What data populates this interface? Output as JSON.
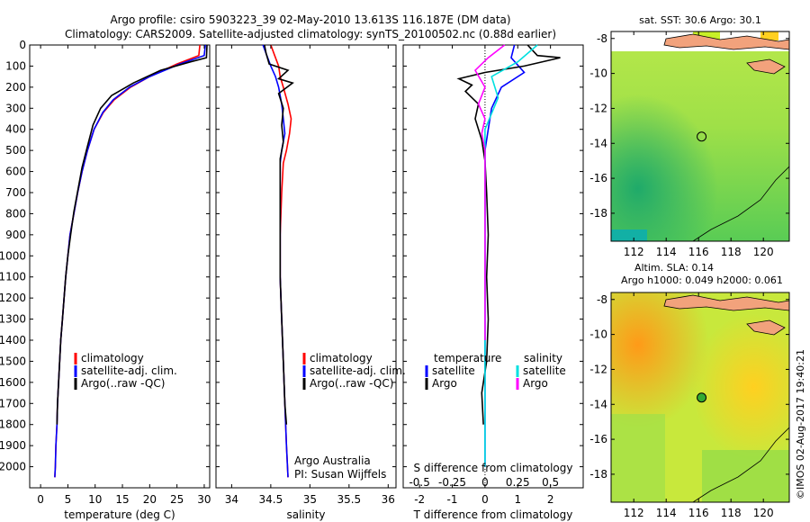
{
  "header": {
    "title_line1": "Argo profile: csiro 5903223_39 02-May-2010 13.613S 116.187E (DM data)",
    "title_line2": "Climatology: CARS2009. Satellite-adjusted climatology: synTS_20100502.nc (0.88d earlier)"
  },
  "colors": {
    "climatology": "#ff0000",
    "satellite": "#0000ff",
    "argo": "#000000",
    "sat_salinity": "#00e0e0",
    "argo_salinity": "#ff00ff"
  },
  "chart_data": [
    {
      "type": "line",
      "id": "temperature",
      "xlabel": "temperature (deg C)",
      "ylabel": "",
      "xlim": [
        -2,
        31
      ],
      "ylim": [
        2100,
        0
      ],
      "xticks": [
        0,
        5,
        10,
        15,
        20,
        25,
        30
      ],
      "yticks": [
        0,
        100,
        200,
        300,
        400,
        500,
        600,
        700,
        800,
        900,
        1000,
        1100,
        1200,
        1300,
        1400,
        1500,
        1600,
        1700,
        1800,
        1900,
        2000
      ],
      "legend": [
        "climatology",
        "satellite-adj. clim.",
        "Argo(..raw -QC)"
      ],
      "series": [
        {
          "name": "climatology",
          "color": "#ff0000",
          "points": [
            [
              29.2,
              0
            ],
            [
              29.0,
              50
            ],
            [
              25.0,
              90
            ],
            [
              20.0,
              150
            ],
            [
              16.5,
              200
            ],
            [
              13.5,
              260
            ],
            [
              11.5,
              320
            ],
            [
              9.8,
              400
            ],
            [
              8.6,
              500
            ],
            [
              7.6,
              600
            ],
            [
              6.8,
              700
            ],
            [
              6.1,
              800
            ],
            [
              5.4,
              900
            ],
            [
              5.0,
              1000
            ],
            [
              4.6,
              1100
            ],
            [
              4.3,
              1200
            ],
            [
              4.0,
              1300
            ],
            [
              3.7,
              1400
            ],
            [
              3.5,
              1500
            ],
            [
              3.3,
              1600
            ],
            [
              3.1,
              1700
            ],
            [
              3.0,
              1800
            ],
            [
              2.8,
              1900
            ],
            [
              2.7,
              2000
            ],
            [
              2.6,
              2050
            ]
          ]
        },
        {
          "name": "satellite-adj. clim.",
          "color": "#0000ff",
          "points": [
            [
              30.2,
              0
            ],
            [
              30.0,
              50
            ],
            [
              25.5,
              90
            ],
            [
              20.0,
              150
            ],
            [
              16.3,
              200
            ],
            [
              13.3,
              260
            ],
            [
              11.4,
              320
            ],
            [
              9.8,
              400
            ],
            [
              8.6,
              500
            ],
            [
              7.6,
              600
            ],
            [
              6.8,
              700
            ],
            [
              6.1,
              800
            ],
            [
              5.4,
              900
            ],
            [
              5.0,
              1000
            ],
            [
              4.6,
              1100
            ],
            [
              4.3,
              1200
            ],
            [
              4.0,
              1300
            ],
            [
              3.7,
              1400
            ],
            [
              3.5,
              1500
            ],
            [
              3.3,
              1600
            ],
            [
              3.1,
              1700
            ],
            [
              3.0,
              1800
            ],
            [
              2.8,
              1900
            ],
            [
              2.7,
              2000
            ],
            [
              2.6,
              2050
            ]
          ]
        },
        {
          "name": "Argo(..raw -QC)",
          "color": "#000000",
          "points": [
            [
              30.5,
              0
            ],
            [
              30.4,
              60
            ],
            [
              27.5,
              80
            ],
            [
              22.0,
              120
            ],
            [
              17.0,
              180
            ],
            [
              13.0,
              240
            ],
            [
              11.0,
              300
            ],
            [
              9.6,
              380
            ],
            [
              8.6,
              480
            ],
            [
              7.6,
              580
            ],
            [
              6.9,
              680
            ],
            [
              6.1,
              790
            ],
            [
              5.5,
              900
            ],
            [
              5.0,
              1000
            ],
            [
              4.6,
              1100
            ],
            [
              4.3,
              1200
            ],
            [
              4.0,
              1300
            ],
            [
              3.7,
              1400
            ],
            [
              3.5,
              1500
            ],
            [
              3.3,
              1600
            ],
            [
              3.1,
              1700
            ],
            [
              3.0,
              1800
            ]
          ]
        }
      ]
    },
    {
      "type": "line",
      "id": "salinity",
      "xlabel": "salinity",
      "xlim": [
        33.8,
        36.1
      ],
      "ylim": [
        2100,
        0
      ],
      "xticks": [
        34,
        34.5,
        35,
        35.5,
        36
      ],
      "legend": [
        "climatology",
        "satellite-adj. clim.",
        "Argo(..raw -QC)"
      ],
      "annotation": [
        "Argo Australia",
        "PI: Susan Wijffels"
      ],
      "series": [
        {
          "name": "climatology",
          "color": "#ff0000",
          "points": [
            [
              34.5,
              0
            ],
            [
              34.55,
              50
            ],
            [
              34.6,
              100
            ],
            [
              34.62,
              150
            ],
            [
              34.66,
              200
            ],
            [
              34.72,
              280
            ],
            [
              34.76,
              350
            ],
            [
              34.74,
              420
            ],
            [
              34.7,
              500
            ],
            [
              34.66,
              560
            ],
            [
              34.64,
              700
            ],
            [
              34.62,
              900
            ],
            [
              34.62,
              1100
            ],
            [
              34.64,
              1300
            ],
            [
              34.66,
              1500
            ],
            [
              34.68,
              1700
            ],
            [
              34.7,
              1900
            ],
            [
              34.72,
              2050
            ]
          ]
        },
        {
          "name": "satellite-adj. clim.",
          "color": "#0000ff",
          "points": [
            [
              34.4,
              0
            ],
            [
              34.45,
              50
            ],
            [
              34.5,
              100
            ],
            [
              34.56,
              150
            ],
            [
              34.6,
              200
            ],
            [
              34.64,
              280
            ],
            [
              34.66,
              350
            ],
            [
              34.68,
              420
            ],
            [
              34.64,
              500
            ],
            [
              34.62,
              560
            ],
            [
              34.62,
              700
            ],
            [
              34.62,
              900
            ],
            [
              34.62,
              1100
            ],
            [
              34.64,
              1300
            ],
            [
              34.66,
              1500
            ],
            [
              34.68,
              1700
            ],
            [
              34.7,
              1900
            ],
            [
              34.72,
              2050
            ]
          ]
        },
        {
          "name": "Argo(..raw -QC)",
          "color": "#000000",
          "points": [
            [
              34.42,
              0
            ],
            [
              34.44,
              40
            ],
            [
              34.48,
              90
            ],
            [
              34.72,
              120
            ],
            [
              34.6,
              160
            ],
            [
              34.78,
              180
            ],
            [
              34.6,
              230
            ],
            [
              34.66,
              300
            ],
            [
              34.64,
              380
            ],
            [
              34.66,
              460
            ],
            [
              34.62,
              540
            ],
            [
              34.62,
              700
            ],
            [
              34.62,
              900
            ],
            [
              34.62,
              1100
            ],
            [
              34.64,
              1300
            ],
            [
              34.66,
              1500
            ],
            [
              34.68,
              1700
            ],
            [
              34.7,
              1800
            ]
          ]
        }
      ]
    },
    {
      "type": "line",
      "id": "difference",
      "xlabel": "T difference from climatology",
      "xlabel_top": "S difference from climatology",
      "xlim": [
        -2.5,
        3.0
      ],
      "ylim": [
        2100,
        0
      ],
      "xticks_bottom": [
        -2,
        -1,
        0,
        1,
        2
      ],
      "xticks_top_labels": [
        "-0.5",
        "-0.25",
        "0",
        "0.25",
        "0.5"
      ],
      "xticks_top_pos": [
        -2.0,
        -1.0,
        0.0,
        1.0,
        2.0
      ],
      "legend_left_title": "temperature",
      "legend_right_title": "salinity",
      "legend": [
        "satellite",
        "Argo",
        "satellite",
        "Argo"
      ],
      "series": [
        {
          "name": "T satellite",
          "color": "#0000ff",
          "points": [
            [
              0.9,
              0
            ],
            [
              0.8,
              60
            ],
            [
              1.2,
              130
            ],
            [
              0.5,
              200
            ],
            [
              0.2,
              300
            ],
            [
              0.1,
              400
            ],
            [
              0,
              500
            ],
            [
              0,
              600
            ],
            [
              0,
              1000
            ],
            [
              0,
              1500
            ],
            [
              0,
              2000
            ]
          ]
        },
        {
          "name": "T Argo",
          "color": "#000000",
          "points": [
            [
              1.3,
              0
            ],
            [
              1.6,
              50
            ],
            [
              2.3,
              60
            ],
            [
              1.2,
              100
            ],
            [
              0.0,
              130
            ],
            [
              -0.8,
              160
            ],
            [
              -0.4,
              190
            ],
            [
              -0.6,
              220
            ],
            [
              -0.2,
              280
            ],
            [
              -0.3,
              350
            ],
            [
              -0.1,
              450
            ],
            [
              0.0,
              550
            ],
            [
              0.05,
              700
            ],
            [
              0.1,
              900
            ],
            [
              0.05,
              1100
            ],
            [
              0.1,
              1300
            ],
            [
              0.05,
              1500
            ],
            [
              -0.1,
              1650
            ],
            [
              -0.05,
              1800
            ]
          ]
        },
        {
          "name": "S satellite",
          "color": "#00e0e0",
          "points": [
            [
              1.6,
              0
            ],
            [
              1.0,
              80
            ],
            [
              0.2,
              150
            ],
            [
              0.4,
              250
            ],
            [
              0.0,
              400
            ],
            [
              0.0,
              600
            ],
            [
              0.0,
              1000
            ],
            [
              0.0,
              1500
            ],
            [
              0.0,
              2000
            ]
          ]
        },
        {
          "name": "S Argo",
          "color": "#ff00ff",
          "points": [
            [
              0.6,
              0
            ],
            [
              0.1,
              60
            ],
            [
              -0.3,
              120
            ],
            [
              0.0,
              200
            ],
            [
              -0.2,
              280
            ],
            [
              0.0,
              350
            ],
            [
              -0.1,
              420
            ],
            [
              0.0,
              500
            ],
            [
              0.0,
              700
            ],
            [
              0.0,
              1000
            ],
            [
              0.0,
              1400
            ]
          ]
        }
      ]
    }
  ],
  "maps": {
    "sst": {
      "title": "sat. SST: 30.6  Argo: 30.1",
      "yticks": [
        "-8",
        "-10",
        "-12",
        "-14",
        "-16",
        "-18"
      ],
      "xticks": [
        "112",
        "114",
        "116",
        "118",
        "120"
      ],
      "lat_range": [
        -19.6,
        -7.6
      ],
      "lon_range": [
        110.6,
        121.6
      ],
      "marker": {
        "lat": -13.613,
        "lon": 116.187,
        "filled": false
      }
    },
    "sla": {
      "title_line1": "Altim. SLA: 0.14",
      "title_line2": "Argo h1000: 0.049 h2000: 0.061",
      "yticks": [
        "-8",
        "-10",
        "-12",
        "-14",
        "-16",
        "-18"
      ],
      "xticks": [
        "112",
        "114",
        "116",
        "118",
        "120"
      ],
      "lat_range": [
        -19.6,
        -7.6
      ],
      "lon_range": [
        110.6,
        121.6
      ],
      "marker": {
        "lat": -13.613,
        "lon": 116.187,
        "filled": true
      }
    }
  },
  "footer": {
    "credit": "©IMOS 02-Aug-2017 19:40:21"
  }
}
